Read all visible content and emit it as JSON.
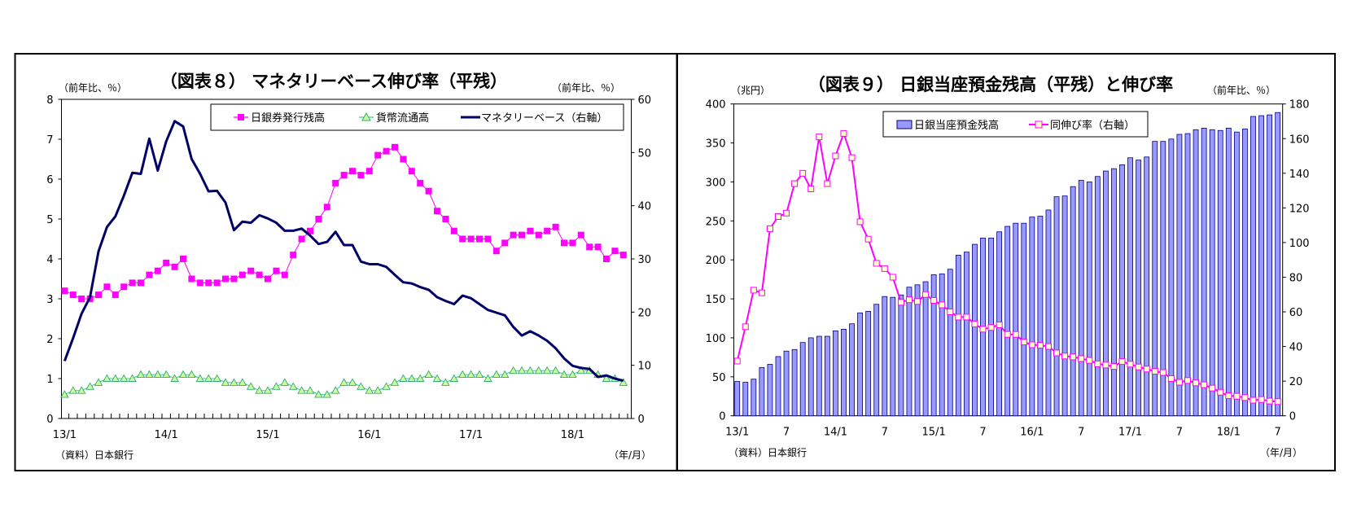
{
  "chart_data": [
    {
      "type": "line",
      "title": "（図表８） マネタリーベース伸び率（平残）",
      "left_unit": "（前年比、％）",
      "right_unit": "（前年比、％）",
      "source": "（資料）日本銀行",
      "x_unit": "（年/月）",
      "x_range": [
        "13/1",
        "18/7"
      ],
      "x_tick_labels": [
        "13/1",
        "14/1",
        "15/1",
        "16/1",
        "17/1",
        "18/1"
      ],
      "y_left": {
        "range": [
          0,
          8
        ],
        "ticks": [
          "0",
          "1",
          "2",
          "3",
          "4",
          "5",
          "6",
          "7",
          "8"
        ]
      },
      "y_right": {
        "range": [
          0,
          60
        ],
        "ticks": [
          "0",
          "10",
          "20",
          "30",
          "40",
          "50",
          "60"
        ]
      },
      "grid": false,
      "legend_placement": "top-right",
      "series": [
        {
          "name": "日銀券発行残高",
          "axis": "left",
          "color": "#ff00ff",
          "marker": "square",
          "values": [
            3.2,
            3.1,
            3.0,
            3.0,
            3.1,
            3.3,
            3.1,
            3.3,
            3.4,
            3.4,
            3.6,
            3.7,
            3.9,
            3.8,
            4.0,
            3.5,
            3.4,
            3.4,
            3.4,
            3.5,
            3.5,
            3.6,
            3.7,
            3.6,
            3.5,
            3.7,
            3.6,
            4.1,
            4.5,
            4.7,
            5.0,
            5.3,
            5.9,
            6.1,
            6.2,
            6.1,
            6.2,
            6.6,
            6.7,
            6.8,
            6.5,
            6.2,
            5.9,
            5.7,
            5.2,
            5.0,
            4.7,
            4.5,
            4.5,
            4.5,
            4.5,
            4.2,
            4.4,
            4.6,
            4.6,
            4.7,
            4.6,
            4.7,
            4.8,
            4.4,
            4.4,
            4.6,
            4.3,
            4.3,
            4.0,
            4.2,
            4.1
          ]
        },
        {
          "name": "貨幣流通高",
          "axis": "left",
          "color": "#33cc99",
          "marker": "triangle",
          "values": [
            0.6,
            0.7,
            0.7,
            0.8,
            0.9,
            1.0,
            1.0,
            1.0,
            1.0,
            1.1,
            1.1,
            1.1,
            1.1,
            1.0,
            1.1,
            1.1,
            1.0,
            1.0,
            1.0,
            0.9,
            0.9,
            0.9,
            0.8,
            0.7,
            0.7,
            0.8,
            0.9,
            0.8,
            0.7,
            0.7,
            0.6,
            0.6,
            0.7,
            0.9,
            0.9,
            0.8,
            0.7,
            0.7,
            0.8,
            0.9,
            1.0,
            1.0,
            1.0,
            1.1,
            1.0,
            0.9,
            1.0,
            1.1,
            1.1,
            1.1,
            1.0,
            1.1,
            1.1,
            1.2,
            1.2,
            1.2,
            1.2,
            1.2,
            1.2,
            1.1,
            1.1,
            1.2,
            1.2,
            1.1,
            1.0,
            1.0,
            0.9
          ]
        },
        {
          "name": "マネタリーベース（右軸）",
          "axis": "right",
          "color": "#000066",
          "marker": "none",
          "values": [
            10.8,
            15.1,
            19.7,
            22.8,
            31.4,
            36.0,
            38.0,
            41.9,
            46.2,
            46.0,
            52.6,
            46.6,
            52.1,
            55.9,
            54.9,
            48.8,
            46.0,
            42.7,
            42.8,
            40.6,
            35.4,
            37.0,
            36.8,
            38.2,
            37.6,
            36.8,
            35.3,
            35.3,
            35.7,
            34.4,
            32.8,
            33.2,
            35.1,
            32.6,
            32.6,
            29.5,
            29.0,
            29.0,
            28.5,
            27.0,
            25.6,
            25.4,
            24.7,
            24.2,
            22.8,
            22.1,
            21.5,
            23.1,
            22.6,
            21.5,
            20.4,
            19.9,
            19.4,
            17.2,
            15.6,
            16.4,
            15.6,
            14.6,
            13.2,
            11.3,
            9.9,
            9.5,
            9.3,
            7.8,
            8.1,
            7.5,
            7.1
          ]
        }
      ]
    },
    {
      "type": "bar+line",
      "title": "（図表９） 日銀当座預金残高（平残）と伸び率",
      "left_unit": "（兆円）",
      "right_unit": "（前年比、％）",
      "source": "（資料）日本銀行",
      "x_unit": "（年/月）",
      "x_range": [
        "13/1",
        "18/7"
      ],
      "x_tick_labels": [
        "13/1",
        "7",
        "14/1",
        "7",
        "15/1",
        "7",
        "16/1",
        "7",
        "17/1",
        "7",
        "18/1",
        "7"
      ],
      "y_left": {
        "range": [
          0,
          400
        ],
        "ticks": [
          "0",
          "50",
          "100",
          "150",
          "200",
          "250",
          "300",
          "350",
          "400"
        ]
      },
      "y_right": {
        "range": [
          0,
          180
        ],
        "ticks": [
          "0",
          "20",
          "40",
          "60",
          "80",
          "100",
          "120",
          "140",
          "160",
          "180"
        ]
      },
      "grid": false,
      "legend_placement": "top-center",
      "series": [
        {
          "name": "日銀当座預金残高",
          "axis": "left",
          "kind": "bar",
          "color": "#9999ff",
          "edge": "#000080",
          "values": [
            44,
            43,
            47,
            62,
            66,
            76,
            83,
            85,
            94,
            100,
            102,
            102,
            109,
            111,
            118,
            132,
            134,
            143,
            153,
            152,
            155,
            165,
            168,
            172,
            181,
            182,
            188,
            206,
            210,
            220,
            228,
            228,
            236,
            243,
            247,
            247,
            255,
            256,
            264,
            281,
            282,
            294,
            302,
            300,
            307,
            314,
            317,
            322,
            331,
            328,
            332,
            352,
            352,
            355,
            361,
            362,
            367,
            369,
            367,
            366,
            369,
            364,
            368,
            384,
            385,
            386,
            389
          ]
        },
        {
          "name": "同伸び率（右軸）",
          "axis": "right",
          "kind": "line",
          "color": "#ff00ff",
          "marker": "square",
          "marker_fill": "#ffffcc",
          "values": [
            31.6,
            51.4,
            72.5,
            71,
            108,
            115,
            117,
            134,
            140,
            131,
            161,
            134,
            150,
            163,
            149,
            112,
            102,
            88,
            85,
            80,
            65.5,
            67,
            66,
            70,
            66.6,
            64,
            60,
            57,
            57,
            53,
            50,
            51,
            52.5,
            47,
            47,
            42.6,
            41,
            40.7,
            40,
            36.3,
            34.5,
            34,
            33,
            32,
            30,
            29.3,
            28.5,
            31.3,
            29.8,
            28.2,
            27,
            25.7,
            25,
            21.5,
            19.4,
            20.4,
            19,
            17.9,
            16,
            13.6,
            11.6,
            11.3,
            10.5,
            9,
            9.4,
            8.5,
            8.2
          ]
        }
      ]
    }
  ]
}
